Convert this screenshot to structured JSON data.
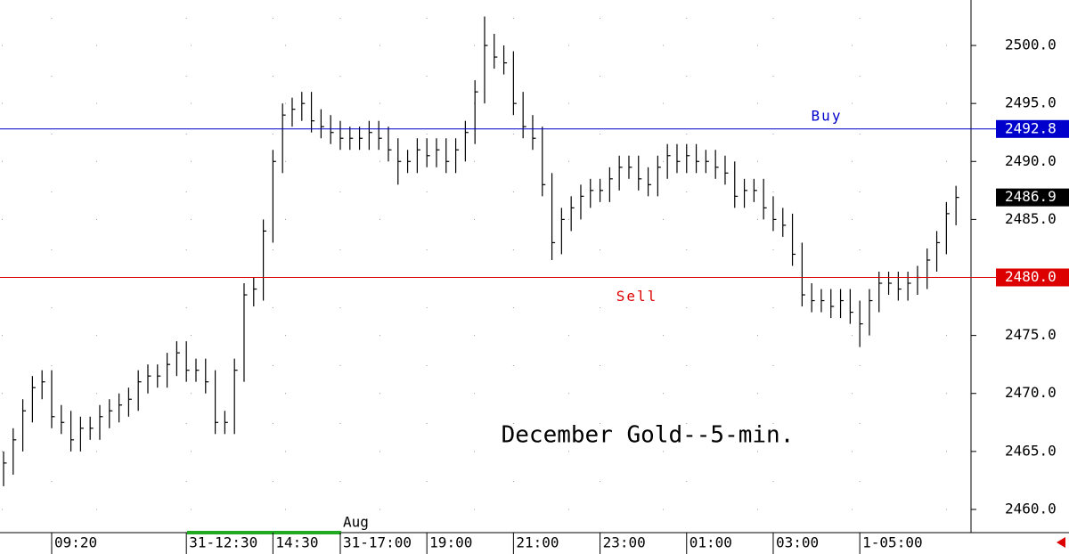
{
  "chart_data": {
    "type": "ohlc",
    "title": "December Gold--5-min.",
    "annotation": "Aug",
    "color": "#000000",
    "high": [
      2465,
      2467,
      2469.5,
      2471.5,
      2472,
      2472,
      2469,
      2468.5,
      2468,
      2468,
      2469,
      2469.5,
      2470,
      2470.5,
      2472,
      2472.5,
      2472.5,
      2473.5,
      2474.5,
      2474.5,
      2473,
      2473,
      2472,
      2468.5,
      2473,
      2479.5,
      2480,
      2485,
      2491,
      2495,
      2495.5,
      2496,
      2496,
      2494.5,
      2494,
      2493.5,
      2493,
      2493,
      2493.5,
      2493.5,
      2493,
      2492,
      2491,
      2492,
      2492,
      2492,
      2492,
      2492,
      2493.5,
      2497,
      2502.5,
      2501,
      2500,
      2499.5,
      2496,
      2494,
      2493,
      2489,
      2486,
      2487,
      2488,
      2488.5,
      2488.5,
      2489.5,
      2490.5,
      2490.5,
      2490.5,
      2489.5,
      2490.5,
      2491.5,
      2491.5,
      2491.5,
      2491.5,
      2491,
      2491,
      2490.5,
      2490,
      2488.5,
      2488.5,
      2488.5,
      2487,
      2486,
      2485.5,
      2483,
      2479.5,
      2479,
      2479,
      2479,
      2479,
      2478,
      2479,
      2480.5,
      2480.5,
      2480.5,
      2480.5,
      2481,
      2482.5,
      2484,
      2486.5,
      2487.9
    ],
    "low": [
      2462,
      2463,
      2465,
      2467.5,
      2469.5,
      2467,
      2466.5,
      2465,
      2465,
      2466,
      2466,
      2467,
      2467.5,
      2468,
      2468.5,
      2470,
      2470.5,
      2470.5,
      2471.5,
      2471,
      2471,
      2470,
      2466.5,
      2466.5,
      2466.5,
      2471,
      2477.5,
      2478,
      2483,
      2489,
      2493,
      2493.5,
      2492.5,
      2492,
      2491.5,
      2491,
      2491,
      2491,
      2491,
      2491,
      2490,
      2488,
      2489,
      2489,
      2489.5,
      2489.5,
      2489,
      2489,
      2490,
      2491.5,
      2495,
      2498,
      2497.5,
      2494,
      2492,
      2491,
      2487,
      2481.5,
      2482,
      2484,
      2485,
      2486,
      2486.5,
      2486.5,
      2487.5,
      2488.5,
      2487.5,
      2487,
      2487,
      2488.5,
      2489,
      2489,
      2489,
      2489,
      2488.5,
      2488,
      2486,
      2486,
      2486.5,
      2485,
      2484,
      2483.5,
      2481,
      2477.5,
      2477,
      2477,
      2476.5,
      2476.5,
      2476,
      2474,
      2475,
      2477,
      2478.5,
      2478,
      2478,
      2478.5,
      2479,
      2480.5,
      2482,
      2484.5
    ],
    "close": [
      2464,
      2466,
      2468.5,
      2470.5,
      2471,
      2468,
      2467.5,
      2466,
      2467,
      2467,
      2468,
      2468.5,
      2469,
      2469.5,
      2471,
      2471.5,
      2471.5,
      2472.5,
      2473.5,
      2472,
      2472,
      2471,
      2467.5,
      2467.5,
      2472,
      2478.5,
      2479,
      2484,
      2490,
      2494,
      2494.5,
      2495,
      2493.5,
      2493,
      2492.5,
      2492,
      2492,
      2492,
      2492.5,
      2492,
      2491,
      2490,
      2490,
      2491,
      2490.5,
      2491,
      2490,
      2491,
      2492.5,
      2496,
      2500,
      2499,
      2498.5,
      2495,
      2493,
      2492,
      2488,
      2483,
      2485,
      2486,
      2487,
      2487.5,
      2487.5,
      2488.5,
      2489.5,
      2489.5,
      2488.5,
      2488,
      2489.5,
      2490.5,
      2490,
      2490.5,
      2490,
      2490,
      2489.5,
      2489,
      2487,
      2487.5,
      2487.5,
      2486,
      2485,
      2484.5,
      2482,
      2478.5,
      2478,
      2478,
      2477.5,
      2478,
      2477,
      2476,
      2478,
      2479.5,
      2479.5,
      2479,
      2479.5,
      2480,
      2481.5,
      2483,
      2485.5,
      2486.9
    ],
    "xlim": [
      -0.37,
      100.56
    ],
    "xticks": [
      {
        "value": 5,
        "label": "09:20"
      },
      {
        "value": 19,
        "label": "31-12:30"
      },
      {
        "value": 28,
        "label": "14:30"
      },
      {
        "value": 35,
        "label": "31-17:00"
      },
      {
        "value": 44,
        "label": "19:00"
      },
      {
        "value": 53,
        "label": "21:00"
      },
      {
        "value": 62,
        "label": "23:00"
      },
      {
        "value": 71,
        "label": "01:00"
      },
      {
        "value": 80,
        "label": "03:00"
      },
      {
        "value": 89,
        "label": "1-05:00"
      }
    ],
    "ylim": [
      2458,
      2503.92
    ],
    "yticks": [
      {
        "value": 2460,
        "label": "2460.0"
      },
      {
        "value": 2465,
        "label": "2465.0"
      },
      {
        "value": 2470,
        "label": "2470.0"
      },
      {
        "value": 2475,
        "label": "2475.0"
      },
      {
        "value": 2480,
        "label": "2480.0"
      },
      {
        "value": 2485,
        "label": "2485.0"
      },
      {
        "value": 2490,
        "label": "2490.0"
      },
      {
        "value": 2495,
        "label": "2495.0"
      },
      {
        "value": 2500,
        "label": "2500.0"
      }
    ],
    "lines": [
      {
        "name": "Buy",
        "value": 2492.8,
        "label": "2492.8",
        "color": "#0000cc"
      },
      {
        "name": "Sell",
        "value": 2480.0,
        "label": "2480.0",
        "color": "#dd0000"
      }
    ],
    "last_price": {
      "value": 2486.9,
      "label": "2486.9",
      "color": "#000000"
    },
    "grid": true
  }
}
